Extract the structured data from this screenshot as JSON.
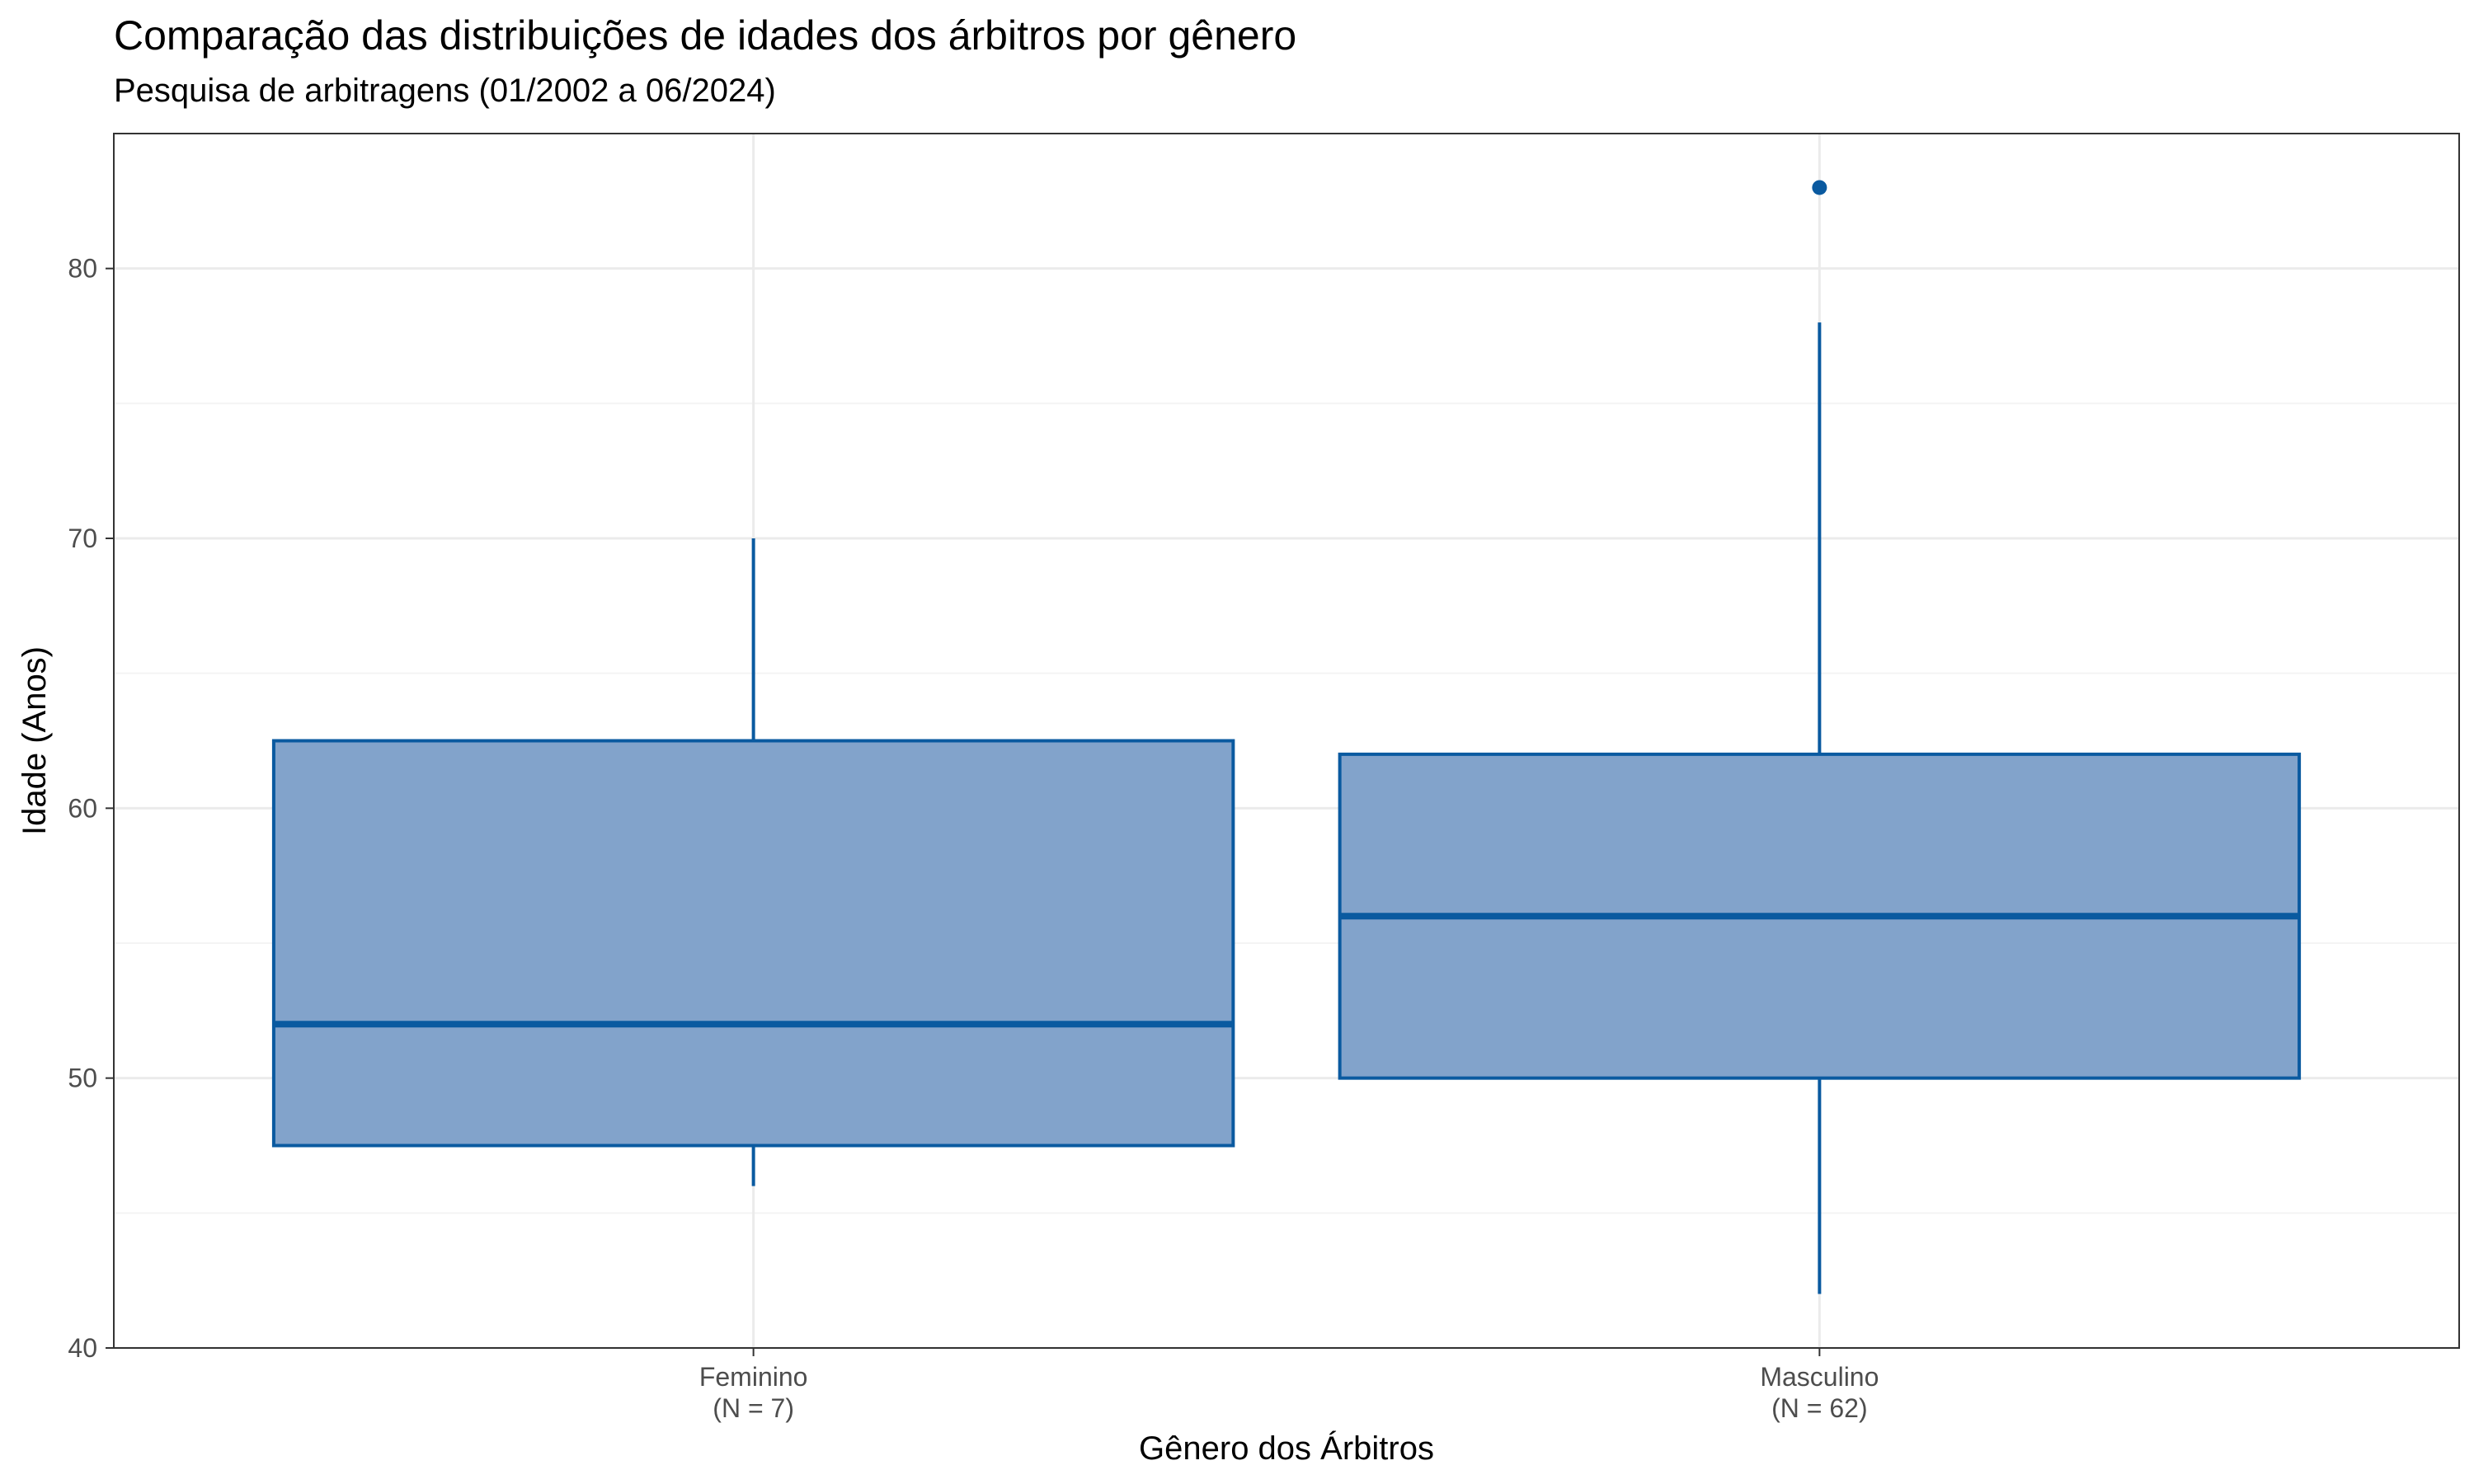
{
  "chart_data": {
    "type": "boxplot",
    "title": "Comparação das distribuições de idades dos árbitros por gênero",
    "subtitle": "Pesquisa de arbitragens (01/2002 a 06/2024)",
    "xlabel": "Gênero dos Árbitros",
    "ylabel": "Idade (Anos)",
    "ylim": [
      40,
      85
    ],
    "yticks": [
      40,
      50,
      60,
      70,
      80
    ],
    "grid": true,
    "legend": "none",
    "colors": {
      "fill": "#82A3CB",
      "stroke": "#0A5AA0",
      "grid_major": "#EBEBEB",
      "grid_minor": "#F4F4F4",
      "panel_border": "#333333"
    },
    "categories": [
      {
        "label": "Feminino",
        "n_label": "(N = 7)",
        "whisker_low": 46,
        "q1": 47.5,
        "median": 52,
        "q3": 62.5,
        "whisker_high": 70,
        "outliers": []
      },
      {
        "label": "Masculino",
        "n_label": "(N = 62)",
        "whisker_low": 42,
        "q1": 50,
        "median": 56,
        "q3": 62,
        "whisker_high": 78,
        "outliers": [
          83
        ]
      }
    ]
  }
}
